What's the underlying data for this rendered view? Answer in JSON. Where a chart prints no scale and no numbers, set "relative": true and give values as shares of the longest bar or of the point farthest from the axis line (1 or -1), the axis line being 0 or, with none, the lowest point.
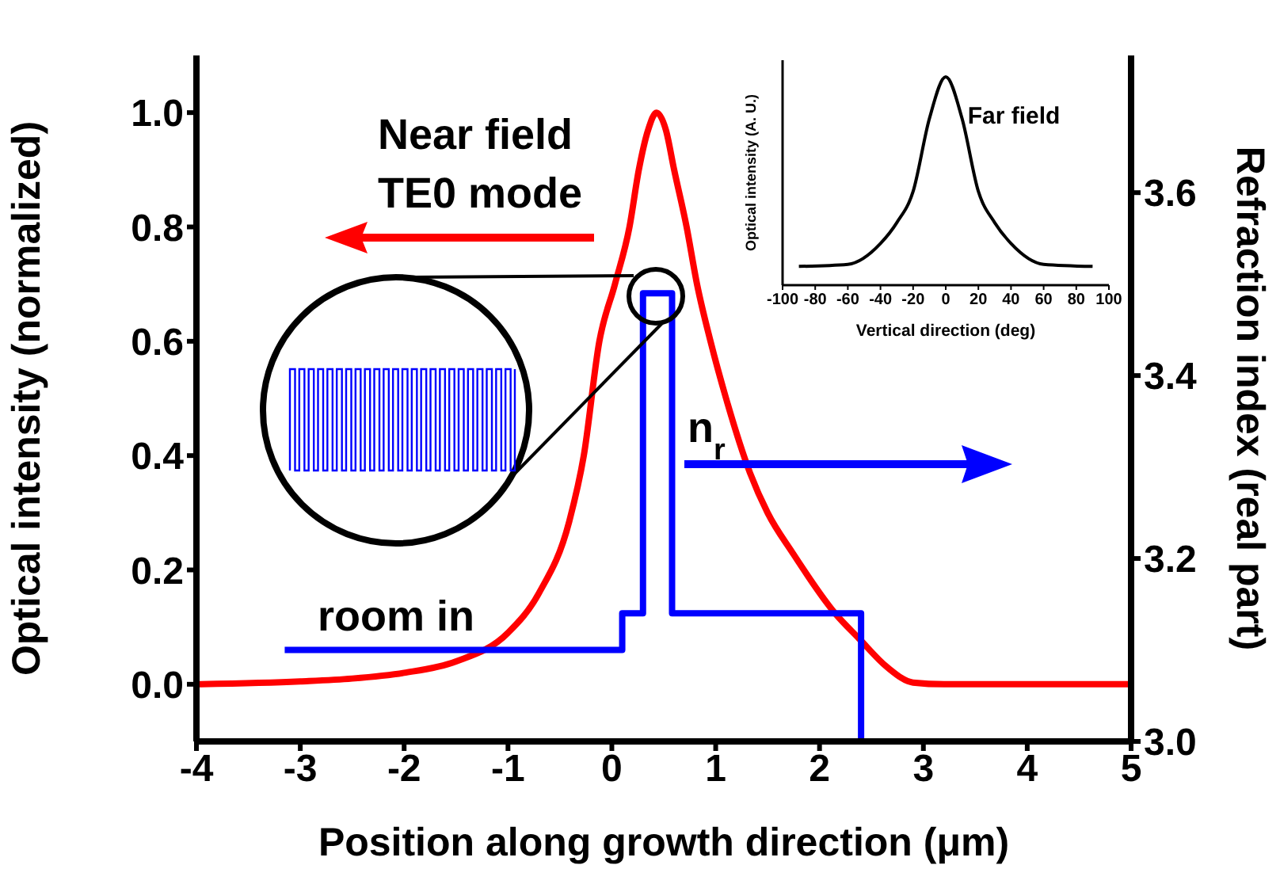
{
  "chart_data": [
    {
      "type": "line",
      "xlabel": "Position along growth direction (μm)",
      "ylabel": "Optical intensity (normalized)",
      "y2label": "Refraction index (real part)",
      "xlim": [
        -4,
        5
      ],
      "xticks": [
        -4,
        -3,
        -2,
        -1,
        0,
        1,
        2,
        3,
        4,
        5
      ],
      "ylim": [
        -0.1,
        1.1
      ],
      "yticks": [
        {
          "value": 0,
          "label": "0.0"
        },
        {
          "value": 0.2,
          "label": "0.2"
        },
        {
          "value": 0.4,
          "label": "0.4"
        },
        {
          "value": 0.6,
          "label": "0.6"
        },
        {
          "value": 0.8,
          "label": "0.8"
        },
        {
          "value": 1,
          "label": "1.0"
        }
      ],
      "y2lim": [
        3.0,
        3.75
      ],
      "y2ticks": [
        {
          "value": 3,
          "label": "3.0"
        },
        3.2,
        3.4,
        3.6
      ],
      "series": [
        {
          "color": "#ff0000",
          "x": [
            -4,
            -3,
            -2.5,
            -2,
            -1.5,
            -1,
            -0.7,
            -0.41,
            -0.27,
            -0.12,
            0.03,
            0.17,
            0.26,
            0.35,
            0.43,
            0.52,
            0.6,
            0.72,
            0.82,
            0.95,
            1.1,
            1.33,
            1.5,
            1.74,
            2.15,
            2.38,
            2.65,
            2.9,
            3.2,
            5
          ],
          "values": [
            0,
            0.005,
            0.01,
            0.02,
            0.04,
            0.09,
            0.16,
            0.285,
            0.4,
            0.6,
            0.7,
            0.8,
            0.9,
            0.97,
            1,
            0.97,
            0.9,
            0.8,
            0.7,
            0.6,
            0.5,
            0.37,
            0.3,
            0.23,
            0.124,
            0.08,
            0.03,
            0.003,
            0,
            0
          ]
        },
        {
          "type": "step",
          "axis": "y2",
          "color": "#0000ff",
          "x": [
            -3.15,
            0.1,
            0.3,
            0.58,
            2.4
          ],
          "values": [
            3.1,
            3.14,
            3.49,
            3.14,
            3.0
          ]
        }
      ],
      "annotations": [
        "Near field",
        "TE0 mode",
        "n$_{r}$",
        "room in"
      ]
    },
    {
      "type": "line",
      "relative": true,
      "tick_labels": "x",
      "xlabel": "Vertical direction (deg)",
      "ylabel": "Optical intensity (A. U.)",
      "xlim": [
        -100,
        100
      ],
      "xticks": [
        -100,
        -80,
        -60,
        -40,
        -20,
        0,
        20,
        40,
        60,
        80,
        100
      ],
      "series": [
        {
          "color": "#000000",
          "x": [
            -90,
            -60,
            -40,
            -30,
            -20,
            -10,
            0,
            10,
            20,
            30,
            40,
            60,
            90
          ],
          "values": [
            0.09,
            0.1,
            0.2,
            0.3,
            0.45,
            0.8,
            1,
            0.8,
            0.45,
            0.3,
            0.2,
            0.1,
            0.09
          ]
        }
      ],
      "annotations": [
        "Far field"
      ]
    }
  ]
}
